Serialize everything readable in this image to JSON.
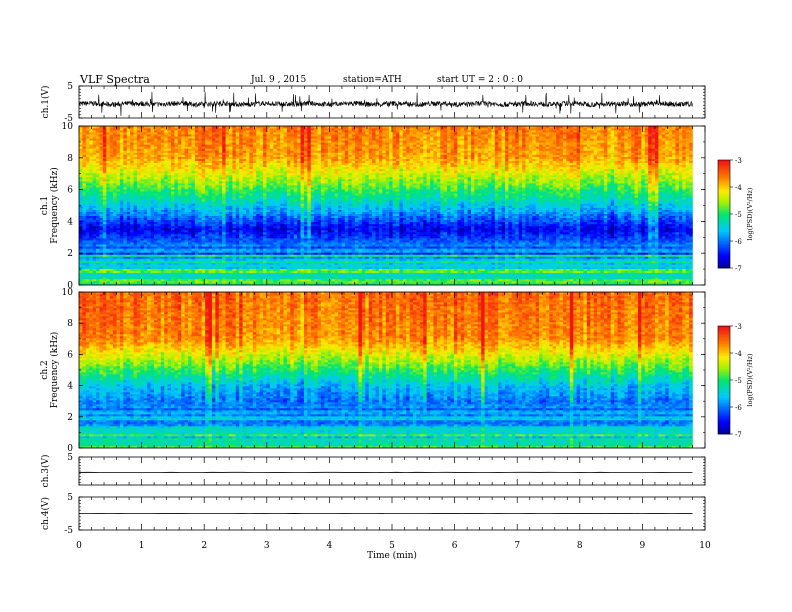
{
  "header": {
    "title": "VLF  Spectra",
    "date": "Jul.  9  , 2015",
    "station": "station=ATH",
    "start": "start  UT  =   2  : 0  : 0"
  },
  "chart_data": [
    {
      "type": "line",
      "id": "ch1",
      "ylabel": "ch.1(V)",
      "ylim": [
        -5,
        5
      ],
      "yticks": [
        "5",
        "-5"
      ],
      "series": [
        {
          "kind": "noise",
          "mean": -0.6,
          "amplitude": 1.6,
          "spikes": true
        }
      ]
    },
    {
      "type": "heatmap",
      "id": "ch1-spectrogram",
      "ylabel": "ch.1\nFrequency (kHz)",
      "ylim": [
        0,
        10
      ],
      "yticks": [
        "0",
        "2",
        "4",
        "6",
        "8",
        "10"
      ],
      "profile": [
        {
          "f": 10,
          "logPSD": -3.6
        },
        {
          "f": 8,
          "logPSD": -3.8
        },
        {
          "f": 6.5,
          "logPSD": -4.6
        },
        {
          "f": 5,
          "logPSD": -5.5
        },
        {
          "f": 3.5,
          "logPSD": -6.6
        },
        {
          "f": 2.3,
          "logPSD": -5.8
        },
        {
          "f": 1,
          "logPSD": -5.5
        },
        {
          "f": 0,
          "logPSD": -5.0
        }
      ],
      "colorbar": {
        "label": "log(PSD)(V²/Hz)",
        "range": [
          -7,
          -3
        ],
        "ticks": [
          "-3",
          "-4",
          "-5",
          "-6",
          "-7"
        ]
      }
    },
    {
      "type": "heatmap",
      "id": "ch2-spectrogram",
      "ylabel": "ch.2\nFrequency (kHz)",
      "ylim": [
        0,
        10
      ],
      "yticks": [
        "0",
        "2",
        "4",
        "6",
        "8",
        "10"
      ],
      "profile": [
        {
          "f": 10,
          "logPSD": -3.5
        },
        {
          "f": 7,
          "logPSD": -3.7
        },
        {
          "f": 5.5,
          "logPSD": -4.6
        },
        {
          "f": 4,
          "logPSD": -5.6
        },
        {
          "f": 3,
          "logPSD": -6.0
        },
        {
          "f": 2,
          "logPSD": -5.6
        },
        {
          "f": 0,
          "logPSD": -5.2
        }
      ],
      "colorbar": {
        "label": "log(PSD)(V²/Hz)",
        "range": [
          -7,
          -3
        ],
        "ticks": [
          "-3",
          "-4",
          "-5",
          "-6",
          "-7"
        ]
      }
    },
    {
      "type": "line",
      "id": "ch3",
      "ylabel": "ch.3(V)",
      "ylim": [
        -5,
        5
      ],
      "yticks": [
        "5"
      ],
      "series": [
        {
          "kind": "flat",
          "mean": -0.5
        }
      ]
    },
    {
      "type": "line",
      "id": "ch4",
      "ylabel": "ch.4(V)",
      "ylim": [
        -5,
        5
      ],
      "yticks": [
        "5",
        "-5"
      ],
      "series": [
        {
          "kind": "flat",
          "mean": 0
        }
      ]
    }
  ],
  "xaxis": {
    "label": "Time  (min)",
    "range": [
      0,
      10
    ],
    "ticks": [
      "0",
      "1",
      "2",
      "3",
      "4",
      "5",
      "6",
      "7",
      "8",
      "9",
      "10"
    ],
    "data_end": 9.8
  }
}
